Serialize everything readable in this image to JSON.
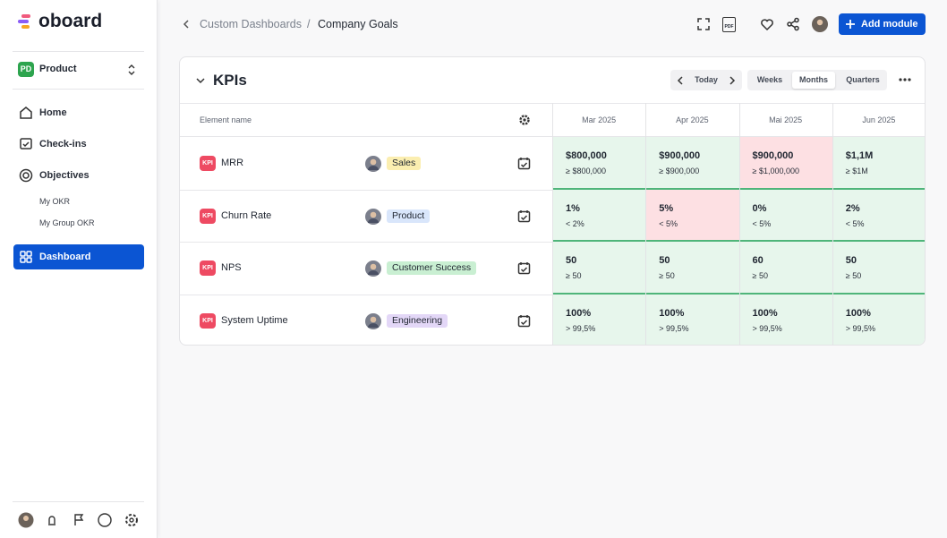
{
  "sidebar": {
    "logo": "oboard",
    "workspace": {
      "badge": "PD",
      "name": "Product"
    },
    "nav": [
      {
        "label": "Home"
      },
      {
        "label": "Check-ins"
      },
      {
        "label": "Objectives"
      },
      {
        "label": "My OKR"
      },
      {
        "label": "My Group OKR"
      },
      {
        "label": "Dashboard"
      }
    ]
  },
  "header": {
    "breadcrumb": [
      "Custom Dashboards",
      "Company Goals"
    ],
    "separator": "/",
    "pdf": "PDF",
    "add_button": "Add module"
  },
  "module": {
    "title": "KPIs",
    "today": "Today",
    "views": [
      "Weeks",
      "Months",
      "Quarters"
    ],
    "active_view": 1
  },
  "table": {
    "column_header": "Element name",
    "periods": [
      "Mar 2025",
      "Apr 2025",
      "Mai 2025",
      "Jun 2025"
    ],
    "rows": [
      {
        "badge": "KPI",
        "name": "MRR",
        "tag": "Sales",
        "tag_color": "#fbeeb0",
        "cells": [
          {
            "value": "$800,000",
            "target": "≥ $800,000",
            "color": "#e7f6ec"
          },
          {
            "value": "$900,000",
            "target": "≥ $900,000",
            "color": "#e7f6ec"
          },
          {
            "value": "$900,000",
            "target": "≥ $1,000,000",
            "color": "#fde0e3"
          },
          {
            "value": "$1,1M",
            "target": "≥ $1M",
            "color": "#e7f6ec"
          }
        ]
      },
      {
        "badge": "KPI",
        "name": "Churn Rate",
        "tag": "Product",
        "tag_color": "#d9e6fb",
        "cells": [
          {
            "value": "1%",
            "target": "< 2%",
            "color": "#e7f6ec"
          },
          {
            "value": "5%",
            "target": "< 5%",
            "color": "#fde0e3"
          },
          {
            "value": "0%",
            "target": "< 5%",
            "color": "#e7f6ec"
          },
          {
            "value": "2%",
            "target": "< 5%",
            "color": "#e7f6ec"
          }
        ]
      },
      {
        "badge": "KPI",
        "name": "NPS",
        "tag": "Customer Success",
        "tag_color": "#c9efd2",
        "cells": [
          {
            "value": "50",
            "target": "≥ 50",
            "color": "#e7f6ec"
          },
          {
            "value": "50",
            "target": "≥ 50",
            "color": "#e7f6ec"
          },
          {
            "value": "60",
            "target": "≥ 50",
            "color": "#e7f6ec"
          },
          {
            "value": "50",
            "target": "≥ 50",
            "color": "#e7f6ec"
          }
        ]
      },
      {
        "badge": "KPI",
        "name": "System Uptime",
        "tag": "Engineering",
        "tag_color": "#e3d7f7",
        "cells": [
          {
            "value": "100%",
            "target": "> 99,5%",
            "color": "#e7f6ec"
          },
          {
            "value": "100%",
            "target": "> 99,5%",
            "color": "#e7f6ec"
          },
          {
            "value": "100%",
            "target": "> 99,5%",
            "color": "#e7f6ec"
          },
          {
            "value": "100%",
            "target": "> 99,5%",
            "color": "#e7f6ec"
          }
        ]
      }
    ]
  }
}
